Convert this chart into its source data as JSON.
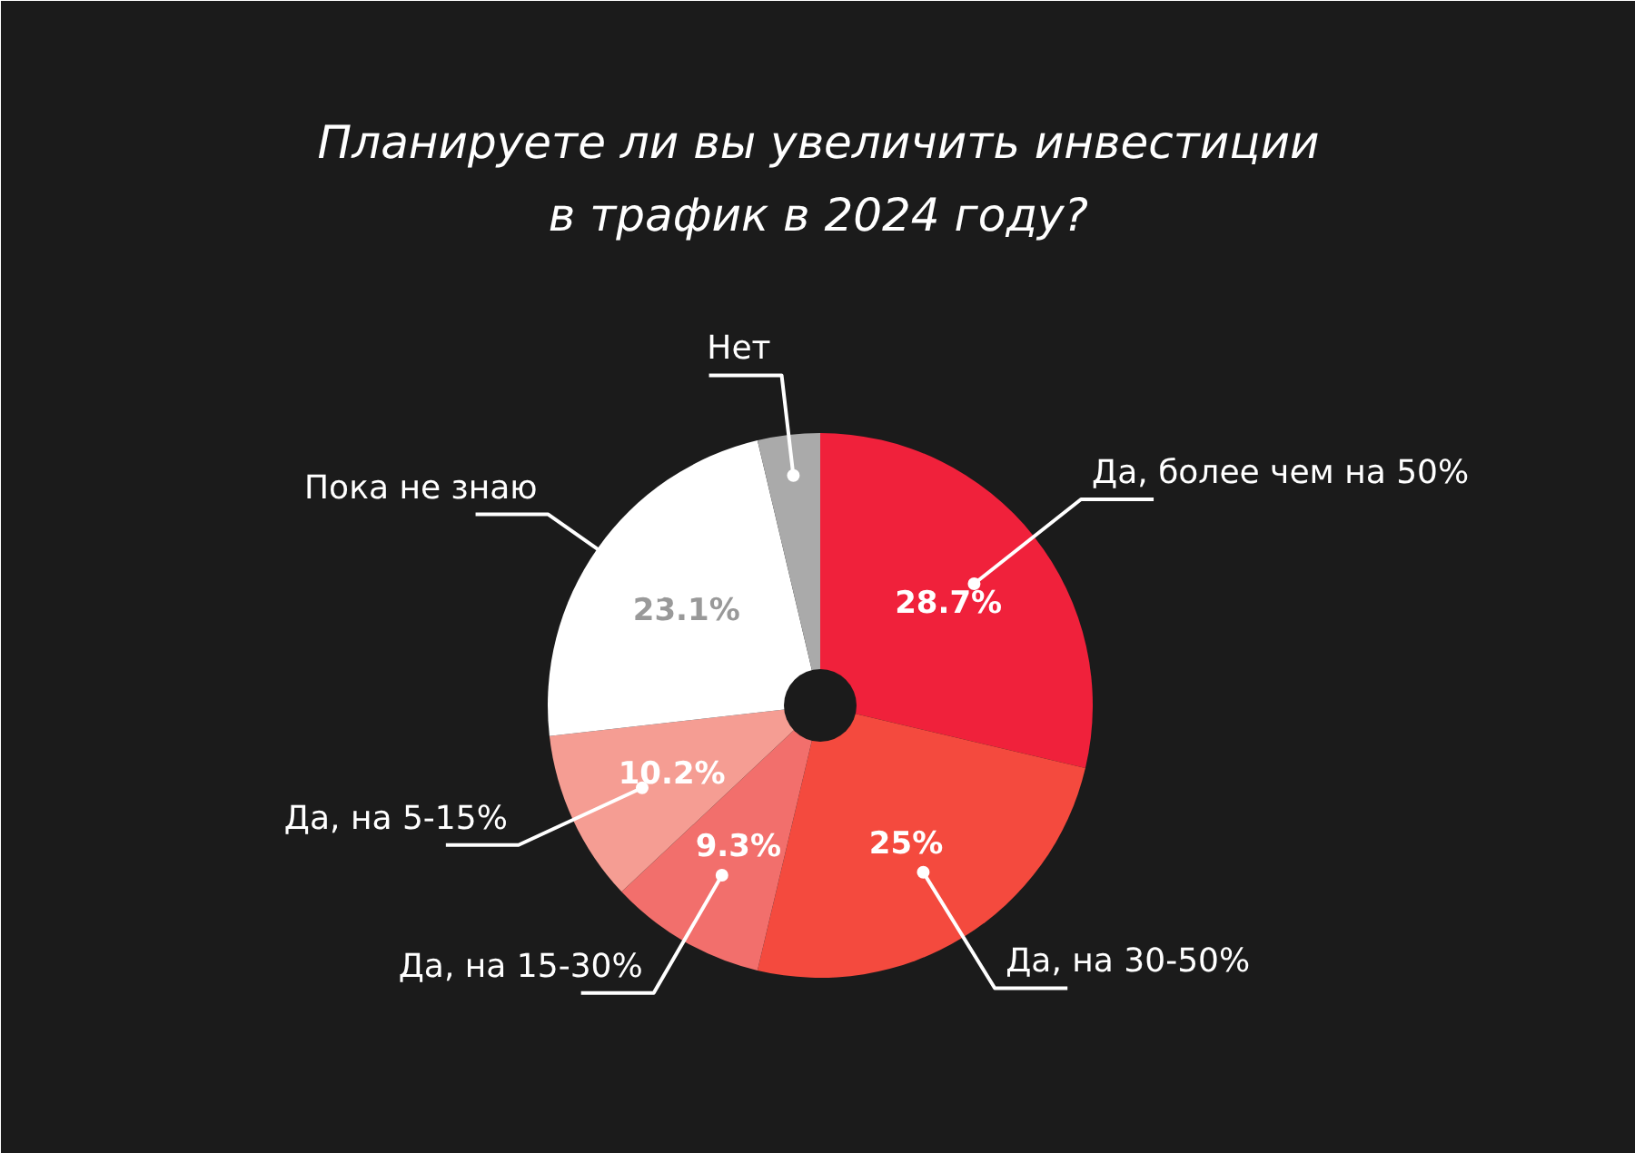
{
  "chart_data": {
    "type": "pie",
    "title": "Планируете ли вы увеличить инвестиции\nв трафик в 2024 году?",
    "categories": [
      "Да, более чем на 50%",
      "Да, на 30-50%",
      "Да, на 15-30%",
      "Да, на 5-15%",
      "Пока не знаю",
      "Нет"
    ],
    "values": [
      28.7,
      25,
      9.3,
      10.2,
      23.1,
      3.7
    ],
    "colors": [
      "#f0213b",
      "#f44a3e",
      "#f26f6c",
      "#f59d93",
      "#ffffff",
      "#aaaaaa"
    ],
    "value_labels": [
      "28.7%",
      "25%",
      "9.3%",
      "10.2%",
      "23.1%",
      null
    ]
  }
}
